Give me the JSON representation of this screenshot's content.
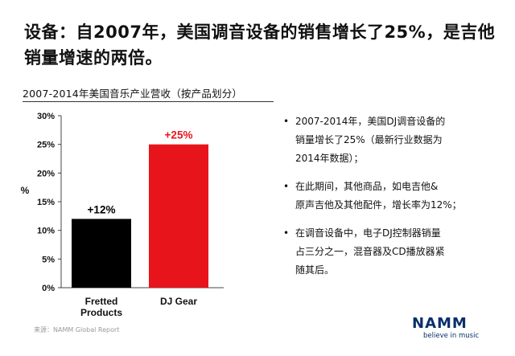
{
  "headline": [
    "设备：自2007年，美国调音设备的销售增长了25%，是吉他",
    "销量增速的两倍。"
  ],
  "chart_title": "2007-2014年美国音乐产业营收（按产品划分）",
  "chart_data": {
    "type": "bar",
    "categories": [
      [
        "Fretted",
        "Products"
      ],
      [
        "DJ Gear"
      ]
    ],
    "values": [
      12,
      25
    ],
    "data_labels": [
      "+12%",
      "+25%"
    ],
    "bar_colors": [
      "#000000",
      "#e8141c"
    ],
    "ylabel": "%",
    "yticks": [
      "0%",
      "5%",
      "10%",
      "15%",
      "20%",
      "25%",
      "30%"
    ],
    "ylim": [
      0,
      30
    ],
    "grid": false
  },
  "bullets": [
    {
      "mark": "•",
      "lines": [
        "2007-2014年，美国DJ调音设备的",
        "销量增长了25%（最新行业数据为",
        "2014年数据）；"
      ]
    },
    {
      "mark": "•",
      "lines": [
        "在此期间，其他商品，如电吉他&",
        "原声吉他及其他配件，增长率为12%；"
      ]
    },
    {
      "mark": "•",
      "lines": [
        "在调音设备中，电子DJ控制器销量",
        "占三分之一，混音器及CD播放器紧",
        "随其后。"
      ]
    }
  ],
  "source": "来源：NAMM Global Report",
  "logo": {
    "word": "NAMM",
    "tagline": "believe in music",
    "color": "#0a2f6b"
  }
}
